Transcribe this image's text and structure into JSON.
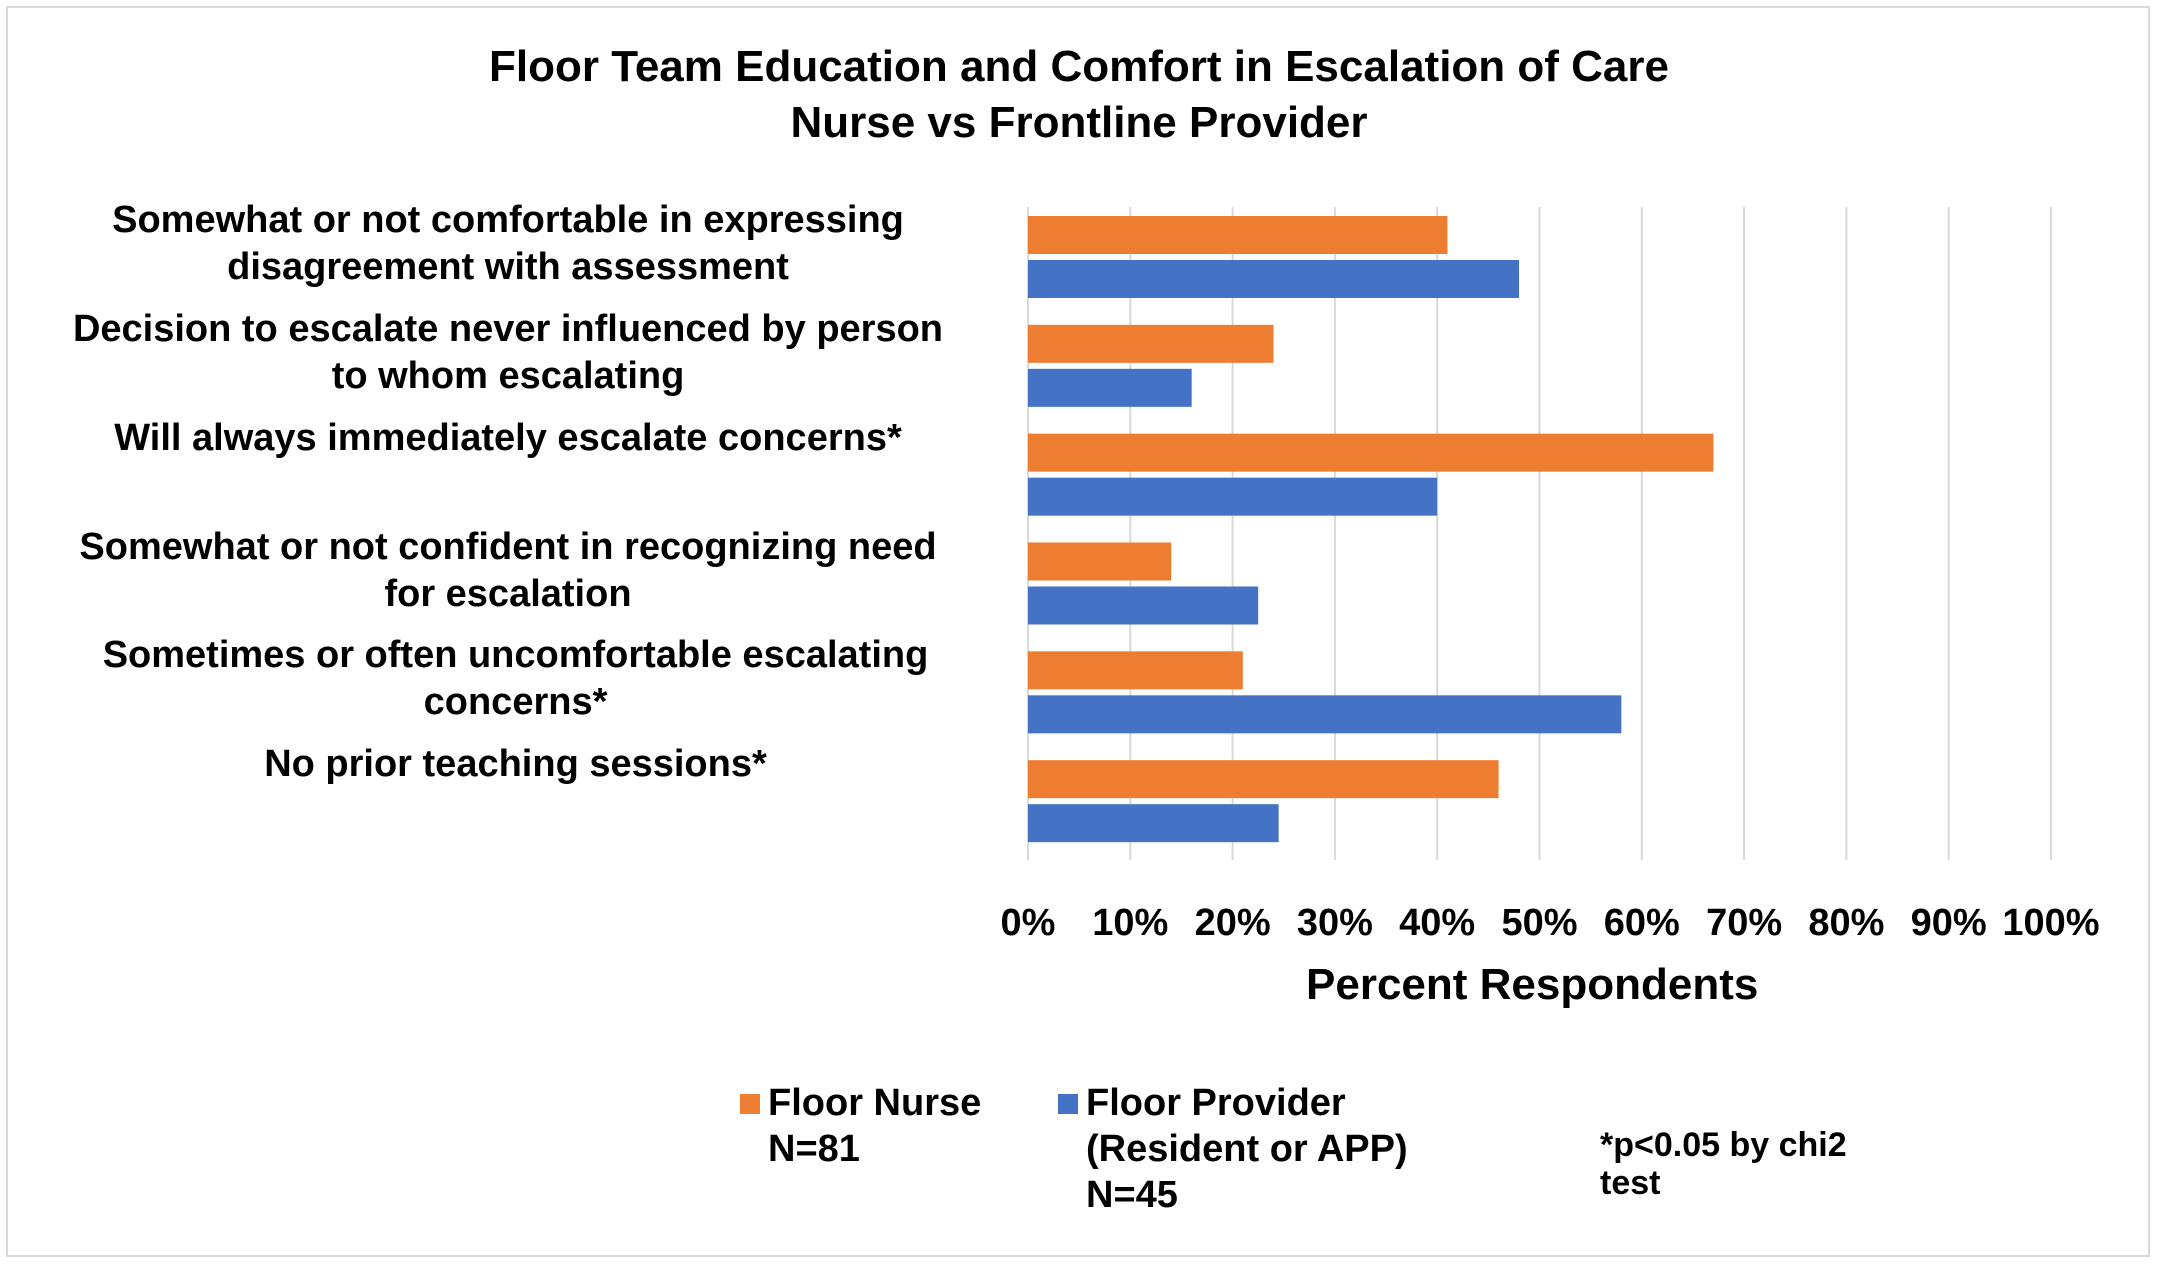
{
  "chart_data": {
    "type": "bar",
    "orientation": "horizontal",
    "title": "Floor Team Education and Comfort in Escalation of Care",
    "subtitle": "Nurse vs Frontline Provider",
    "xlabel": "Percent Respondents",
    "ylabel": "",
    "xlim": [
      0,
      100
    ],
    "xticks": [
      "0%",
      "10%",
      "20%",
      "30%",
      "40%",
      "50%",
      "60%",
      "70%",
      "80%",
      "90%",
      "100%"
    ],
    "grid": "vertical",
    "legend_position": "bottom",
    "categories": [
      {
        "line1": "Somewhat or not comfortable in expressing",
        "line2": "disagreement with assessment"
      },
      {
        "line1": "Decision to escalate never influenced by person",
        "line2": "to whom escalating"
      },
      {
        "line1": "Will always immediately escalate concerns*",
        "line2": ""
      },
      {
        "line1": "Somewhat or not confident in recognizing need",
        "line2": "for escalation"
      },
      {
        "line1": "Sometimes or often uncomfortable escalating",
        "line2": "concerns*"
      },
      {
        "line1": "No prior teaching sessions*",
        "line2": ""
      }
    ],
    "series": [
      {
        "line1": "Floor Nurse",
        "line2": "N=81",
        "line3": "",
        "color": "#ed7d31",
        "values": [
          41,
          24,
          67,
          14,
          21,
          46
        ]
      },
      {
        "line1": "Floor Provider",
        "line2": "(Resident or APP)",
        "line3": "N=45",
        "color": "#4472c4",
        "values": [
          48,
          16,
          40,
          22.5,
          58,
          24.5
        ]
      }
    ],
    "footnote": {
      "line1": "*p<0.05 by chi2",
      "line2": "test"
    }
  }
}
